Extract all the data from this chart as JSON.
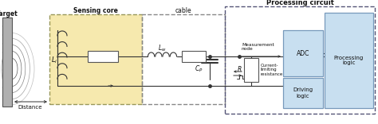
{
  "title": "Processing circuit",
  "label_cable": "cable",
  "label_target": "Target",
  "label_sensing_core": "Sensing core",
  "label_distance": "Distance",
  "bg_color": "#ffffff",
  "sensing_core_fill": "#f5e6a0",
  "box_fill_light": "#c8dff0",
  "line_color": "#333333",
  "dash_color": "#666666",
  "figw": 4.74,
  "figh": 1.56,
  "dpi": 100
}
